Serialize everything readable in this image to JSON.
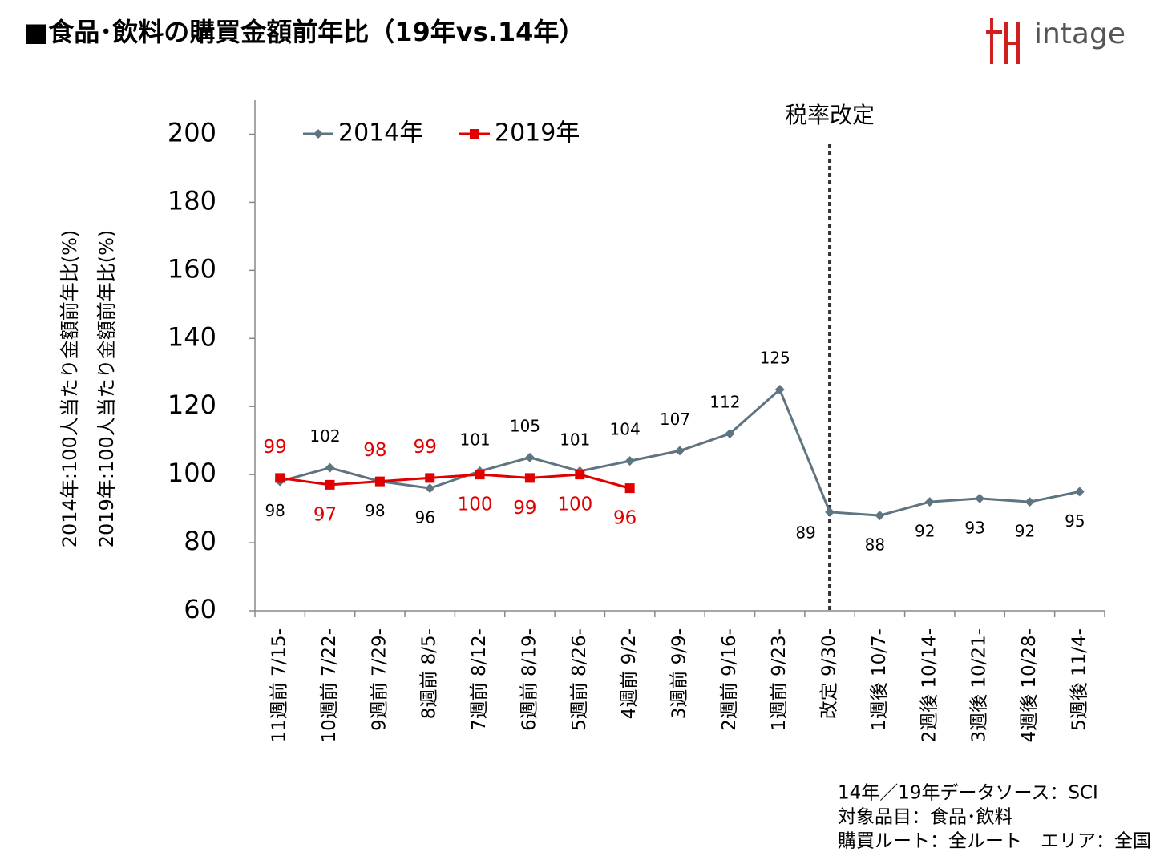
{
  "chart_data": {
    "type": "line",
    "title": "■食品･飲料の購買金額前年比（19年vs.14年）",
    "logo": "intage",
    "ylabel": [
      "2014年:100人当たり金額前年比(%)",
      "2019年:100人当たり金額前年比(%)"
    ],
    "categories": [
      "11週前 7/15-",
      "10週前 7/22-",
      "9週前 7/29-",
      "8週前 8/5-",
      "7週前 8/12-",
      "6週前 8/19-",
      "5週前 8/26-",
      "4週前 9/2-",
      "3週前 9/9-",
      "2週前 9/16-",
      "1週前 9/23-",
      "改定 9/30-",
      "1週後 10/7-",
      "2週後 10/14-",
      "3週後 10/21-",
      "4週後 10/28-",
      "5週後 11/4-"
    ],
    "series": [
      {
        "name": "2014年",
        "color": "#5f7481",
        "marker": "diamond",
        "values": [
          98,
          102,
          98,
          96,
          101,
          105,
          101,
          104,
          107,
          112,
          125,
          89,
          88,
          92,
          93,
          92,
          95
        ]
      },
      {
        "name": "2019年",
        "color": "#e00000",
        "marker": "square",
        "values": [
          99,
          97,
          98,
          99,
          100,
          99,
          100,
          96,
          null,
          null,
          null,
          null,
          null,
          null,
          null,
          null,
          null
        ]
      }
    ],
    "ylim": [
      60,
      210
    ],
    "yticks": [
      60,
      80,
      100,
      120,
      140,
      160,
      180,
      200
    ],
    "grid": false,
    "legend": "top-left",
    "annotation": {
      "text": "税率改定",
      "category": "改定 9/30-"
    },
    "notes": [
      "14年／19年データソース：SCI",
      "対象品目：食品･飲料",
      "購買ルート：全ルート　エリア：全国"
    ]
  }
}
